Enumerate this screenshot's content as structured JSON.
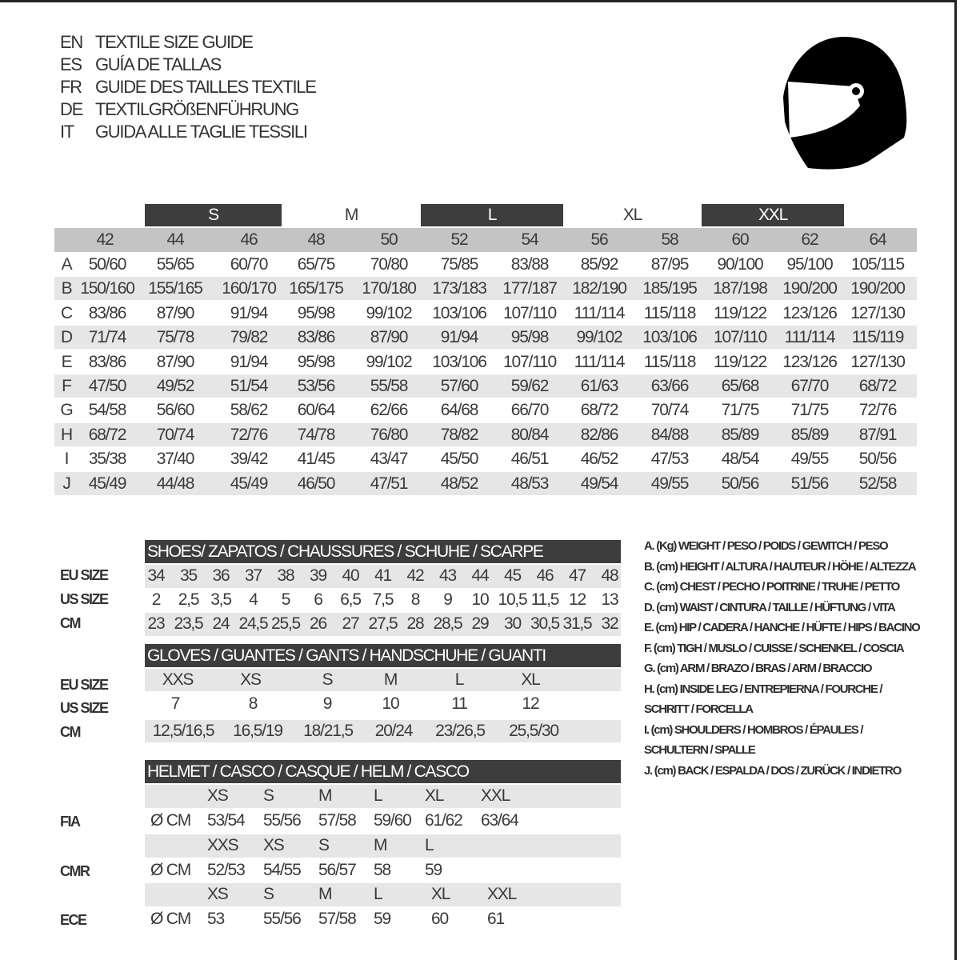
{
  "titles": [
    {
      "code": "EN",
      "text": "TEXTILE SIZE GUIDE"
    },
    {
      "code": "ES",
      "text": "GUÍA DE TALLAS"
    },
    {
      "code": "FR",
      "text": "GUIDE DES TAILLES TEXTILE"
    },
    {
      "code": "DE",
      "text": "TEXTILGRÖßENFÜHRUNG"
    },
    {
      "code": "IT",
      "text": "GUIDA ALLE TAGLIE TESSILI"
    }
  ],
  "logo": {
    "icon": "helmet-icon"
  },
  "colors": {
    "dark_band": "#3d3d3d",
    "light_band": "#e6e6e6",
    "size_band": "#c4c4c4"
  },
  "textile": {
    "size_groups": [
      "S",
      "M",
      "L",
      "XL",
      "XXL"
    ],
    "sizes": [
      "42",
      "44",
      "46",
      "48",
      "50",
      "52",
      "54",
      "56",
      "58",
      "60",
      "62",
      "64"
    ],
    "rows": [
      {
        "label": "A",
        "values": [
          "50/60",
          "55/65",
          "60/70",
          "65/75",
          "70/80",
          "75/85",
          "83/88",
          "85/92",
          "87/95",
          "90/100",
          "95/100",
          "105/115"
        ]
      },
      {
        "label": "B",
        "values": [
          "150/160",
          "155/165",
          "160/170",
          "165/175",
          "170/180",
          "173/183",
          "177/187",
          "182/190",
          "185/195",
          "187/198",
          "190/200",
          "190/200"
        ]
      },
      {
        "label": "C",
        "values": [
          "83/86",
          "87/90",
          "91/94",
          "95/98",
          "99/102",
          "103/106",
          "107/110",
          "111/114",
          "115/118",
          "119/122",
          "123/126",
          "127/130"
        ]
      },
      {
        "label": "D",
        "values": [
          "71/74",
          "75/78",
          "79/82",
          "83/86",
          "87/90",
          "91/94",
          "95/98",
          "99/102",
          "103/106",
          "107/110",
          "111/114",
          "115/119"
        ]
      },
      {
        "label": "E",
        "values": [
          "83/86",
          "87/90",
          "91/94",
          "95/98",
          "99/102",
          "103/106",
          "107/110",
          "111/114",
          "115/118",
          "119/122",
          "123/126",
          "127/130"
        ]
      },
      {
        "label": "F",
        "values": [
          "47/50",
          "49/52",
          "51/54",
          "53/56",
          "55/58",
          "57/60",
          "59/62",
          "61/63",
          "63/66",
          "65/68",
          "67/70",
          "68/72"
        ]
      },
      {
        "label": "G",
        "values": [
          "54/58",
          "56/60",
          "58/62",
          "60/64",
          "62/66",
          "64/68",
          "66/70",
          "68/72",
          "70/74",
          "71/75",
          "71/75",
          "72/76"
        ]
      },
      {
        "label": "H",
        "values": [
          "68/72",
          "70/74",
          "72/76",
          "74/78",
          "76/80",
          "78/82",
          "80/84",
          "82/86",
          "84/88",
          "85/89",
          "85/89",
          "87/91"
        ]
      },
      {
        "label": "I",
        "values": [
          "35/38",
          "37/40",
          "39/42",
          "41/45",
          "43/47",
          "45/50",
          "46/51",
          "46/52",
          "47/53",
          "48/54",
          "49/55",
          "50/56"
        ]
      },
      {
        "label": "J",
        "values": [
          "45/49",
          "44/48",
          "45/49",
          "46/50",
          "47/51",
          "48/52",
          "48/53",
          "49/54",
          "49/55",
          "50/56",
          "51/56",
          "52/58"
        ]
      }
    ]
  },
  "shoes": {
    "title": "SHOES/ ZAPATOS / CHAUSSURES / SCHUHE / SCARPE",
    "rows": [
      {
        "label": "EU SIZE",
        "values": [
          "34",
          "35",
          "36",
          "37",
          "38",
          "39",
          "40",
          "41",
          "42",
          "43",
          "44",
          "45",
          "46",
          "47",
          "48"
        ]
      },
      {
        "label": "US SIZE",
        "values": [
          "2",
          "2,5",
          "3,5",
          "4",
          "5",
          "6",
          "6,5",
          "7,5",
          "8",
          "9",
          "10",
          "10,5",
          "11,5",
          "12",
          "13"
        ]
      },
      {
        "label": "CM",
        "values": [
          "23",
          "23,5",
          "24",
          "24,5",
          "25,5",
          "26",
          "27",
          "27,5",
          "28",
          "28,5",
          "29",
          "30",
          "30,5",
          "31,5",
          "32"
        ]
      }
    ]
  },
  "gloves": {
    "title": "GLOVES / GUANTES / GANTS / HANDSCHUHE / GUANTI",
    "rows": [
      {
        "label": "EU SIZE",
        "values": [
          "XXS",
          "XS",
          "S",
          "M",
          "L",
          "XL"
        ]
      },
      {
        "label": "US SIZE",
        "values": [
          "7",
          "8",
          "9",
          "10",
          "11",
          "12"
        ]
      },
      {
        "label": "CM",
        "values": [
          "12,5/16,5",
          "16,5/19",
          "18/21,5",
          "20/24",
          "23/26,5",
          "25,5/30"
        ]
      }
    ]
  },
  "helmet": {
    "title": "HELMET / CASCO / CASQUE / HELM / CASCO",
    "unit": "Ø CM",
    "standards": [
      {
        "label": "FIA",
        "sizes": [
          "XS",
          "S",
          "M",
          "L",
          "XL",
          "XXL"
        ],
        "values": [
          "53/54",
          "55/56",
          "57/58",
          "59/60",
          "61/62",
          "63/64"
        ]
      },
      {
        "label": "CMR",
        "sizes": [
          "XXS",
          "XS",
          "S",
          "M",
          "L"
        ],
        "values": [
          "52/53",
          "54/55",
          "56/57",
          "58",
          "59"
        ]
      },
      {
        "label": "ECE",
        "sizes": [
          "XS",
          "S",
          "M",
          "L",
          "XL",
          "XXL"
        ],
        "values": [
          "53",
          "55/56",
          "57/58",
          "59",
          "60",
          "61"
        ]
      }
    ]
  },
  "legend": [
    "A. (Kg) WEIGHT / PESO / POIDS / GEWITCH / PESO",
    "B. (cm) HEIGHT / ALTURA / HAUTEUR / HÖHE / ALTEZZA",
    "C. (cm) CHEST / PECHO / POITRINE / TRUHE / PETTO",
    "D. (cm) WAIST / CINTURA / TAILLE / HÜFTUNG / VITA",
    "E. (cm) HIP / CADERA / HANCHE / HÜFTE / HIPS /  BACINO",
    "F.  (cm) TIGH / MUSLO / CUISSE / SCHENKEL / COSCIA",
    "G. (cm) ARM  / BRAZO / BRAS / ARM / BRACCIO",
    "H. (cm) INSIDE LEG / ENTREPIERNA / FOURCHE /",
    "SCHRITT / FORCELLA",
    "I.  (cm) SHOULDERS / HOMBROS / ÉPAULES /",
    "SCHULTERN / SPALLE",
    "J. (cm) BACK / ESPALDA / DOS / ZURÜCK / INDIETRO"
  ]
}
